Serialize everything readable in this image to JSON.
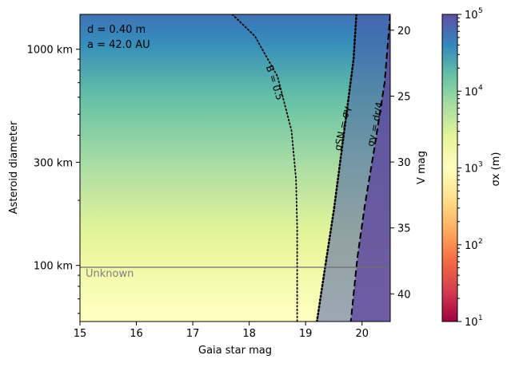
{
  "chart_data": {
    "type": "heatmap",
    "annotation": {
      "line1": "d = 0.40 m",
      "line2": "a = 42.0 AU"
    },
    "xlabel": "Gaia star mag",
    "ylabel_left": "Asteroid diameter",
    "ylabel_right": "V mag",
    "colorbar_label": "σx (m)",
    "xlim": [
      15,
      20.5
    ],
    "x_ticks": [
      15,
      16,
      17,
      18,
      19,
      20
    ],
    "y_left_ticks": [
      {
        "value_km": 1000,
        "label": "1000 km"
      },
      {
        "value_km": 300,
        "label": "300 km"
      },
      {
        "value_km": 100,
        "label": "100 km"
      }
    ],
    "y_left_range_km": [
      55,
      1450
    ],
    "y_right_ticks": [
      20,
      25,
      30,
      35,
      40
    ],
    "y_right_range": [
      42.1,
      18.8
    ],
    "y_scale": "log",
    "colorbar": {
      "scale": "log",
      "range": [
        10,
        100000
      ],
      "ticks": [
        {
          "value": 10,
          "label": "10"
        },
        {
          "value": 100,
          "label": "10"
        },
        {
          "value": 1000,
          "label": "10"
        },
        {
          "value": 10000,
          "label": "10"
        },
        {
          "value": 100000,
          "label": "10"
        }
      ],
      "tick_exponents": [
        "1",
        "2",
        "3",
        "4",
        "5"
      ],
      "colors": [
        "#9e0142",
        "#d53e4f",
        "#f46d43",
        "#fdae61",
        "#fee08b",
        "#ffffbf",
        "#e6f598",
        "#abdda4",
        "#66c2a5",
        "#3288bd",
        "#5e4fa2"
      ]
    },
    "field_log10_sigma": {
      "description_values": "sigma_x increases with diameter; bottom ~10^3, top ~10^4.7; saturated purple strip near faint limit",
      "bottom": 3.0,
      "top": 4.75
    },
    "contours": [
      {
        "label": "B = 0.5",
        "style": "dotted",
        "points": [
          [
            17.7,
            1450
          ],
          [
            18.1,
            1150
          ],
          [
            18.5,
            750
          ],
          [
            18.75,
            420
          ],
          [
            18.83,
            250
          ],
          [
            18.85,
            150
          ],
          [
            18.85,
            55
          ]
        ]
      },
      {
        "label": "σSN = σγ",
        "style": "dotted",
        "points": [
          [
            19.9,
            1450
          ],
          [
            19.85,
            900
          ],
          [
            19.7,
            450
          ],
          [
            19.5,
            180
          ],
          [
            19.35,
            100
          ],
          [
            19.2,
            55
          ]
        ]
      },
      {
        "label": "σγ = dr/4",
        "style": "dashed",
        "points": [
          [
            20.5,
            1450
          ],
          [
            20.4,
            700
          ],
          [
            20.22,
            350
          ],
          [
            20.05,
            190
          ],
          [
            19.92,
            110
          ],
          [
            19.8,
            55
          ]
        ]
      }
    ],
    "hline": {
      "value_km": 98,
      "label": "Unknown"
    }
  }
}
